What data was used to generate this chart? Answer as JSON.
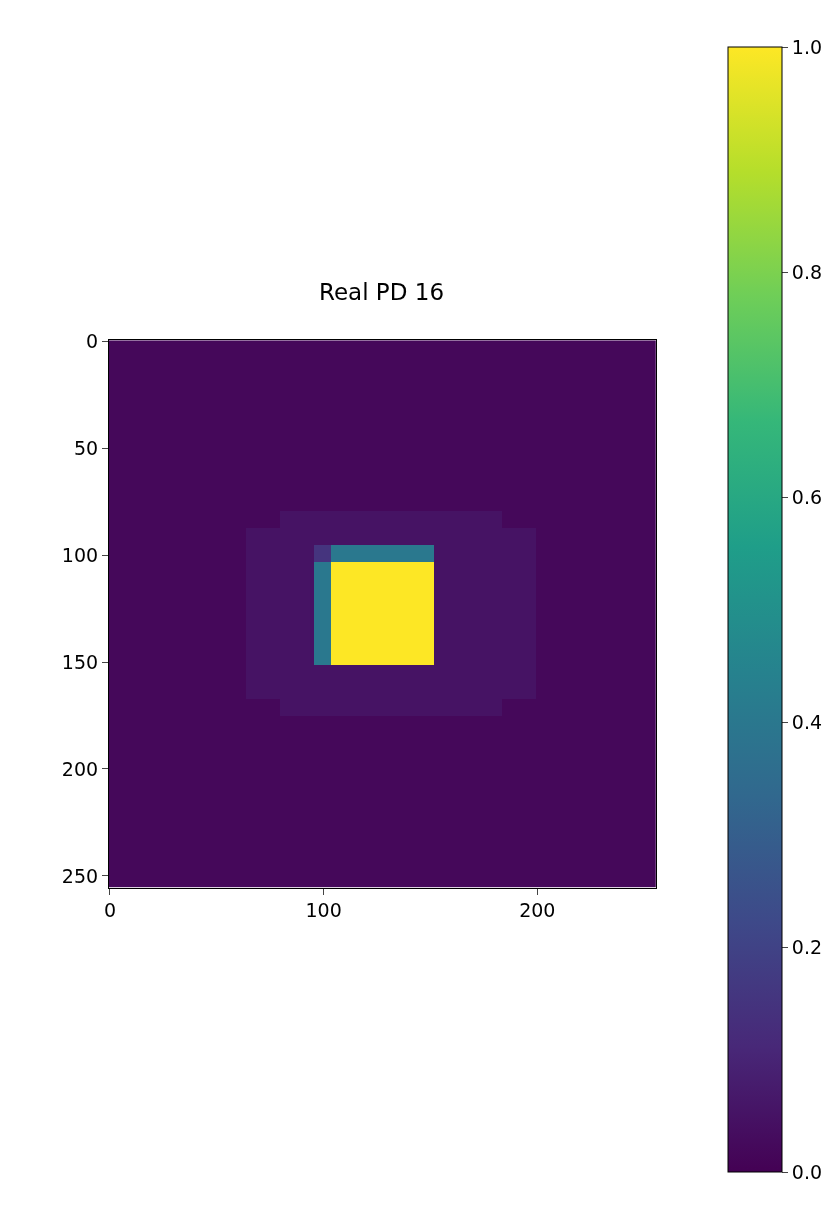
{
  "chart_data": {
    "type": "heatmap",
    "title": "Real PD 16",
    "xlim": [
      -0.5,
      255.5
    ],
    "ylim": [
      255.5,
      -0.5
    ],
    "xticks": [
      0,
      100,
      200
    ],
    "yticks": [
      0,
      50,
      100,
      150,
      200,
      250
    ],
    "clim": [
      0,
      1
    ],
    "cticks": [
      {
        "value": 0,
        "label": "0.0"
      },
      {
        "value": 0.2,
        "label": "0.2"
      },
      {
        "value": 0.4,
        "label": "0.4"
      },
      {
        "value": 0.6,
        "label": "0.6"
      },
      {
        "value": 0.8,
        "label": "0.8"
      },
      {
        "value": 1,
        "label": "1.0"
      }
    ],
    "cells": [
      [
        0.02,
        0.02,
        0.02,
        0.02,
        0.02,
        0.02,
        0.02,
        0.02,
        0.02,
        0.02,
        0.02,
        0.02,
        0.02,
        0.02,
        0.02,
        0.02,
        0.02,
        0.02,
        0.02,
        0.02,
        0.02,
        0.02,
        0.02,
        0.02,
        0.02,
        0.02,
        0.02,
        0.02,
        0.02,
        0.02,
        0.02,
        0.02
      ],
      [
        0.02,
        0.02,
        0.02,
        0.02,
        0.02,
        0.02,
        0.02,
        0.02,
        0.02,
        0.02,
        0.02,
        0.02,
        0.02,
        0.02,
        0.02,
        0.02,
        0.02,
        0.02,
        0.02,
        0.02,
        0.02,
        0.02,
        0.02,
        0.02,
        0.02,
        0.02,
        0.02,
        0.02,
        0.02,
        0.02,
        0.02,
        0.02
      ],
      [
        0.02,
        0.02,
        0.02,
        0.02,
        0.02,
        0.02,
        0.02,
        0.02,
        0.02,
        0.02,
        0.02,
        0.02,
        0.02,
        0.02,
        0.02,
        0.02,
        0.02,
        0.02,
        0.02,
        0.02,
        0.02,
        0.02,
        0.02,
        0.02,
        0.02,
        0.02,
        0.02,
        0.02,
        0.02,
        0.02,
        0.02,
        0.02
      ],
      [
        0.02,
        0.02,
        0.02,
        0.02,
        0.02,
        0.02,
        0.02,
        0.02,
        0.02,
        0.02,
        0.02,
        0.02,
        0.02,
        0.02,
        0.02,
        0.02,
        0.02,
        0.02,
        0.02,
        0.02,
        0.02,
        0.02,
        0.02,
        0.02,
        0.02,
        0.02,
        0.02,
        0.02,
        0.02,
        0.02,
        0.02,
        0.02
      ],
      [
        0.02,
        0.02,
        0.02,
        0.02,
        0.02,
        0.02,
        0.02,
        0.02,
        0.02,
        0.02,
        0.02,
        0.02,
        0.02,
        0.02,
        0.02,
        0.02,
        0.02,
        0.02,
        0.02,
        0.02,
        0.02,
        0.02,
        0.02,
        0.02,
        0.02,
        0.02,
        0.02,
        0.02,
        0.02,
        0.02,
        0.02,
        0.02
      ],
      [
        0.02,
        0.02,
        0.02,
        0.02,
        0.02,
        0.02,
        0.02,
        0.02,
        0.02,
        0.02,
        0.02,
        0.02,
        0.02,
        0.02,
        0.02,
        0.02,
        0.02,
        0.02,
        0.02,
        0.02,
        0.02,
        0.02,
        0.02,
        0.02,
        0.02,
        0.02,
        0.02,
        0.02,
        0.02,
        0.02,
        0.02,
        0.02
      ],
      [
        0.02,
        0.02,
        0.02,
        0.02,
        0.02,
        0.02,
        0.02,
        0.02,
        0.02,
        0.02,
        0.02,
        0.02,
        0.02,
        0.02,
        0.02,
        0.02,
        0.02,
        0.02,
        0.02,
        0.02,
        0.02,
        0.02,
        0.02,
        0.02,
        0.02,
        0.02,
        0.02,
        0.02,
        0.02,
        0.02,
        0.02,
        0.02
      ],
      [
        0.02,
        0.02,
        0.02,
        0.02,
        0.02,
        0.02,
        0.02,
        0.02,
        0.02,
        0.02,
        0.02,
        0.02,
        0.02,
        0.02,
        0.02,
        0.02,
        0.02,
        0.02,
        0.02,
        0.02,
        0.02,
        0.02,
        0.02,
        0.02,
        0.02,
        0.02,
        0.02,
        0.02,
        0.02,
        0.02,
        0.02,
        0.02
      ],
      [
        0.02,
        0.02,
        0.02,
        0.02,
        0.02,
        0.02,
        0.02,
        0.02,
        0.02,
        0.02,
        0.02,
        0.02,
        0.02,
        0.02,
        0.02,
        0.02,
        0.02,
        0.02,
        0.02,
        0.02,
        0.02,
        0.02,
        0.02,
        0.02,
        0.02,
        0.02,
        0.02,
        0.02,
        0.02,
        0.02,
        0.02,
        0.02
      ],
      [
        0.02,
        0.02,
        0.02,
        0.02,
        0.02,
        0.02,
        0.02,
        0.02,
        0.02,
        0.02,
        0.02,
        0.02,
        0.02,
        0.02,
        0.02,
        0.02,
        0.02,
        0.02,
        0.02,
        0.02,
        0.02,
        0.02,
        0.02,
        0.02,
        0.02,
        0.02,
        0.02,
        0.02,
        0.02,
        0.02,
        0.02,
        0.02
      ],
      [
        0.02,
        0.02,
        0.02,
        0.02,
        0.02,
        0.02,
        0.02,
        0.02,
        0.02,
        0.02,
        0.05,
        0.05,
        0.05,
        0.05,
        0.05,
        0.05,
        0.05,
        0.05,
        0.05,
        0.05,
        0.05,
        0.05,
        0.05,
        0.02,
        0.02,
        0.02,
        0.02,
        0.02,
        0.02,
        0.02,
        0.02,
        0.02
      ],
      [
        0.02,
        0.02,
        0.02,
        0.02,
        0.02,
        0.02,
        0.02,
        0.02,
        0.05,
        0.05,
        0.05,
        0.05,
        0.05,
        0.05,
        0.05,
        0.05,
        0.05,
        0.05,
        0.05,
        0.05,
        0.05,
        0.05,
        0.05,
        0.05,
        0.05,
        0.02,
        0.02,
        0.02,
        0.02,
        0.02,
        0.02,
        0.02
      ],
      [
        0.02,
        0.02,
        0.02,
        0.02,
        0.02,
        0.02,
        0.02,
        0.02,
        0.05,
        0.05,
        0.05,
        0.05,
        0.15,
        0.4,
        0.4,
        0.4,
        0.4,
        0.4,
        0.4,
        0.05,
        0.05,
        0.05,
        0.05,
        0.05,
        0.05,
        0.02,
        0.02,
        0.02,
        0.02,
        0.02,
        0.02,
        0.02
      ],
      [
        0.02,
        0.02,
        0.02,
        0.02,
        0.02,
        0.02,
        0.02,
        0.02,
        0.05,
        0.05,
        0.05,
        0.05,
        0.4,
        1.0,
        1.0,
        1.0,
        1.0,
        1.0,
        1.0,
        0.05,
        0.05,
        0.05,
        0.05,
        0.05,
        0.05,
        0.02,
        0.02,
        0.02,
        0.02,
        0.02,
        0.02,
        0.02
      ],
      [
        0.02,
        0.02,
        0.02,
        0.02,
        0.02,
        0.02,
        0.02,
        0.02,
        0.05,
        0.05,
        0.05,
        0.05,
        0.4,
        1.0,
        1.0,
        1.0,
        1.0,
        1.0,
        1.0,
        0.05,
        0.05,
        0.05,
        0.05,
        0.05,
        0.05,
        0.02,
        0.02,
        0.02,
        0.02,
        0.02,
        0.02,
        0.02
      ],
      [
        0.02,
        0.02,
        0.02,
        0.02,
        0.02,
        0.02,
        0.02,
        0.02,
        0.05,
        0.05,
        0.05,
        0.05,
        0.4,
        1.0,
        1.0,
        1.0,
        1.0,
        1.0,
        1.0,
        0.05,
        0.05,
        0.05,
        0.05,
        0.05,
        0.05,
        0.02,
        0.02,
        0.02,
        0.02,
        0.02,
        0.02,
        0.02
      ],
      [
        0.02,
        0.02,
        0.02,
        0.02,
        0.02,
        0.02,
        0.02,
        0.02,
        0.05,
        0.05,
        0.05,
        0.05,
        0.4,
        1.0,
        1.0,
        1.0,
        1.0,
        1.0,
        1.0,
        0.05,
        0.05,
        0.05,
        0.05,
        0.05,
        0.05,
        0.02,
        0.02,
        0.02,
        0.02,
        0.02,
        0.02,
        0.02
      ],
      [
        0.02,
        0.02,
        0.02,
        0.02,
        0.02,
        0.02,
        0.02,
        0.02,
        0.05,
        0.05,
        0.05,
        0.05,
        0.4,
        1.0,
        1.0,
        1.0,
        1.0,
        1.0,
        1.0,
        0.05,
        0.05,
        0.05,
        0.05,
        0.05,
        0.05,
        0.02,
        0.02,
        0.02,
        0.02,
        0.02,
        0.02,
        0.02
      ],
      [
        0.02,
        0.02,
        0.02,
        0.02,
        0.02,
        0.02,
        0.02,
        0.02,
        0.05,
        0.05,
        0.05,
        0.05,
        0.4,
        1.0,
        1.0,
        1.0,
        1.0,
        1.0,
        1.0,
        0.05,
        0.05,
        0.05,
        0.05,
        0.05,
        0.05,
        0.02,
        0.02,
        0.02,
        0.02,
        0.02,
        0.02,
        0.02
      ],
      [
        0.02,
        0.02,
        0.02,
        0.02,
        0.02,
        0.02,
        0.02,
        0.02,
        0.05,
        0.05,
        0.05,
        0.05,
        0.05,
        0.05,
        0.05,
        0.05,
        0.05,
        0.05,
        0.05,
        0.05,
        0.05,
        0.05,
        0.05,
        0.05,
        0.05,
        0.02,
        0.02,
        0.02,
        0.02,
        0.02,
        0.02,
        0.02
      ],
      [
        0.02,
        0.02,
        0.02,
        0.02,
        0.02,
        0.02,
        0.02,
        0.02,
        0.05,
        0.05,
        0.05,
        0.05,
        0.05,
        0.05,
        0.05,
        0.05,
        0.05,
        0.05,
        0.05,
        0.05,
        0.05,
        0.05,
        0.05,
        0.05,
        0.05,
        0.02,
        0.02,
        0.02,
        0.02,
        0.02,
        0.02,
        0.02
      ],
      [
        0.02,
        0.02,
        0.02,
        0.02,
        0.02,
        0.02,
        0.02,
        0.02,
        0.02,
        0.02,
        0.05,
        0.05,
        0.05,
        0.05,
        0.05,
        0.05,
        0.05,
        0.05,
        0.05,
        0.05,
        0.05,
        0.05,
        0.05,
        0.02,
        0.02,
        0.02,
        0.02,
        0.02,
        0.02,
        0.02,
        0.02,
        0.02
      ],
      [
        0.02,
        0.02,
        0.02,
        0.02,
        0.02,
        0.02,
        0.02,
        0.02,
        0.02,
        0.02,
        0.02,
        0.02,
        0.02,
        0.02,
        0.02,
        0.02,
        0.02,
        0.02,
        0.02,
        0.02,
        0.02,
        0.02,
        0.02,
        0.02,
        0.02,
        0.02,
        0.02,
        0.02,
        0.02,
        0.02,
        0.02,
        0.02
      ],
      [
        0.02,
        0.02,
        0.02,
        0.02,
        0.02,
        0.02,
        0.02,
        0.02,
        0.02,
        0.02,
        0.02,
        0.02,
        0.02,
        0.02,
        0.02,
        0.02,
        0.02,
        0.02,
        0.02,
        0.02,
        0.02,
        0.02,
        0.02,
        0.02,
        0.02,
        0.02,
        0.02,
        0.02,
        0.02,
        0.02,
        0.02,
        0.02
      ],
      [
        0.02,
        0.02,
        0.02,
        0.02,
        0.02,
        0.02,
        0.02,
        0.02,
        0.02,
        0.02,
        0.02,
        0.02,
        0.02,
        0.02,
        0.02,
        0.02,
        0.02,
        0.02,
        0.02,
        0.02,
        0.02,
        0.02,
        0.02,
        0.02,
        0.02,
        0.02,
        0.02,
        0.02,
        0.02,
        0.02,
        0.02,
        0.02
      ],
      [
        0.02,
        0.02,
        0.02,
        0.02,
        0.02,
        0.02,
        0.02,
        0.02,
        0.02,
        0.02,
        0.02,
        0.02,
        0.02,
        0.02,
        0.02,
        0.02,
        0.02,
        0.02,
        0.02,
        0.02,
        0.02,
        0.02,
        0.02,
        0.02,
        0.02,
        0.02,
        0.02,
        0.02,
        0.02,
        0.02,
        0.02,
        0.02
      ],
      [
        0.02,
        0.02,
        0.02,
        0.02,
        0.02,
        0.02,
        0.02,
        0.02,
        0.02,
        0.02,
        0.02,
        0.02,
        0.02,
        0.02,
        0.02,
        0.02,
        0.02,
        0.02,
        0.02,
        0.02,
        0.02,
        0.02,
        0.02,
        0.02,
        0.02,
        0.02,
        0.02,
        0.02,
        0.02,
        0.02,
        0.02,
        0.02
      ],
      [
        0.02,
        0.02,
        0.02,
        0.02,
        0.02,
        0.02,
        0.02,
        0.02,
        0.02,
        0.02,
        0.02,
        0.02,
        0.02,
        0.02,
        0.02,
        0.02,
        0.02,
        0.02,
        0.02,
        0.02,
        0.02,
        0.02,
        0.02,
        0.02,
        0.02,
        0.02,
        0.02,
        0.02,
        0.02,
        0.02,
        0.02,
        0.02
      ],
      [
        0.02,
        0.02,
        0.02,
        0.02,
        0.02,
        0.02,
        0.02,
        0.02,
        0.02,
        0.02,
        0.02,
        0.02,
        0.02,
        0.02,
        0.02,
        0.02,
        0.02,
        0.02,
        0.02,
        0.02,
        0.02,
        0.02,
        0.02,
        0.02,
        0.02,
        0.02,
        0.02,
        0.02,
        0.02,
        0.02,
        0.02,
        0.02
      ],
      [
        0.02,
        0.02,
        0.02,
        0.02,
        0.02,
        0.02,
        0.02,
        0.02,
        0.02,
        0.02,
        0.02,
        0.02,
        0.02,
        0.02,
        0.02,
        0.02,
        0.02,
        0.02,
        0.02,
        0.02,
        0.02,
        0.02,
        0.02,
        0.02,
        0.02,
        0.02,
        0.02,
        0.02,
        0.02,
        0.02,
        0.02,
        0.02
      ],
      [
        0.02,
        0.02,
        0.02,
        0.02,
        0.02,
        0.02,
        0.02,
        0.02,
        0.02,
        0.02,
        0.02,
        0.02,
        0.02,
        0.02,
        0.02,
        0.02,
        0.02,
        0.02,
        0.02,
        0.02,
        0.02,
        0.02,
        0.02,
        0.02,
        0.02,
        0.02,
        0.02,
        0.02,
        0.02,
        0.02,
        0.02,
        0.02
      ],
      [
        0.02,
        0.02,
        0.02,
        0.02,
        0.02,
        0.02,
        0.02,
        0.02,
        0.02,
        0.02,
        0.02,
        0.02,
        0.02,
        0.02,
        0.02,
        0.02,
        0.02,
        0.02,
        0.02,
        0.02,
        0.02,
        0.02,
        0.02,
        0.02,
        0.02,
        0.02,
        0.02,
        0.02,
        0.02,
        0.02,
        0.02,
        0.02
      ]
    ]
  }
}
